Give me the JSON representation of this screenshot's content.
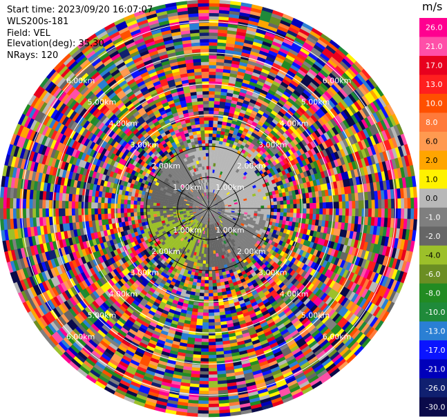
{
  "header": {
    "start_time": "Start time: 2023/09/20 16:07:07",
    "instrument": "WLS200s-181",
    "field": "Field: VEL",
    "elevation": "Elevation(deg): 35.30",
    "nrays": "NRays: 120"
  },
  "chart_data": {
    "type": "heatmap",
    "projection": "polar-ppi",
    "title": "",
    "field": "VEL",
    "units": "m/s",
    "nrays": 120,
    "range_rings_km": [
      1.0,
      2.0,
      3.0,
      4.0,
      5.0,
      6.0
    ],
    "ring_labels": {
      "1": "1.00km",
      "2": "2.00km",
      "3": "3.00km",
      "4": "4.00km",
      "5": "5.00km",
      "6": "6.00km"
    },
    "max_range_km": 6.7,
    "valid_data_range_km": 2.2,
    "velocity_pattern": {
      "towards_quadrant": "north-east",
      "towards_value_ms": 3.0,
      "away_quadrant": "south-west",
      "away_value_ms": -5.0,
      "near_center_value_ms": 0.0
    },
    "colorbar": {
      "label": "m/s",
      "vmin": -30,
      "vmax": 30,
      "ticks": [
        "26.0",
        "21.0",
        "17.0",
        "13.0",
        "10.0",
        "8.0",
        "6.0",
        "2.0",
        "1.0",
        "0.0",
        "-1.0",
        "-2.0",
        "-4.0",
        "-6.0",
        "-8.0",
        "-10.0",
        "-13.0",
        "-17.0",
        "-21.0",
        "-26.0",
        "-30.0"
      ],
      "colors": [
        "#ff0090",
        "#ff4fa8",
        "#e8001e",
        "#ff1f1f",
        "#ff5000",
        "#ff7a3a",
        "#ff9a50",
        "#ffa500",
        "#fff200",
        "#b8b8b8",
        "#7f7f7f",
        "#666666",
        "#9cc02a",
        "#6b8e23",
        "#228b22",
        "#1f8a3a",
        "#2a7fd4",
        "#0a14ff",
        "#0000ba",
        "#102070",
        "#0a0a4a"
      ]
    }
  }
}
